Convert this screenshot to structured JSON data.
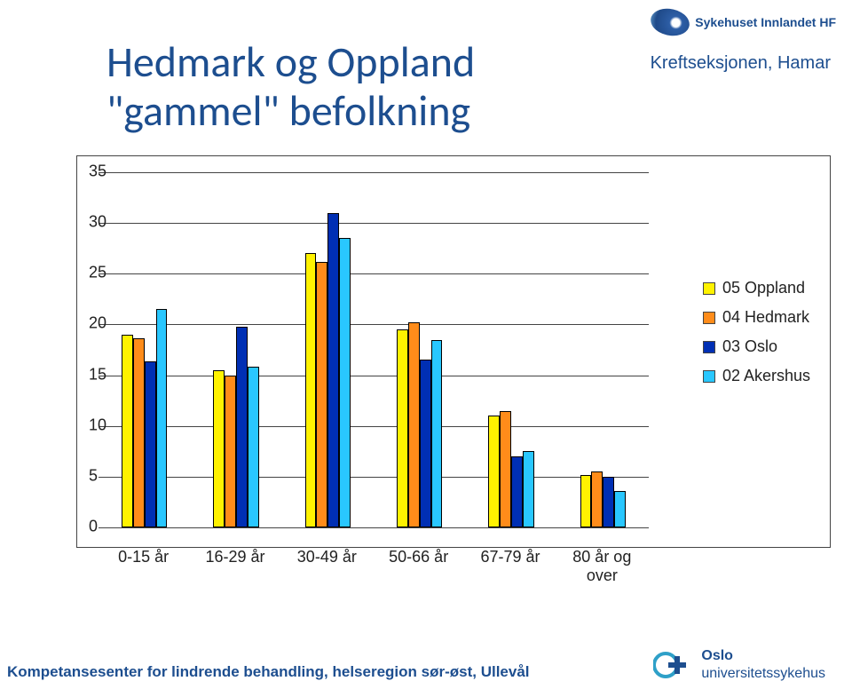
{
  "header": {
    "logo_text": "Sykehuset Innlandet HF",
    "subunit": "Kreftseksjonen, Hamar"
  },
  "title": "Hedmark og Oppland\n\"gammel\" befolkning",
  "chart": {
    "type": "bar",
    "categories": [
      "0-15 år",
      "16-29 år",
      "30-49 år",
      "50-66 år",
      "67-79 år",
      "80 år og over"
    ],
    "series": [
      {
        "name": "05 Oppland",
        "color": "#fff200",
        "values": [
          19.0,
          15.5,
          27.0,
          19.5,
          11.0,
          5.2
        ]
      },
      {
        "name": "04 Hedmark",
        "color": "#ff8c1a",
        "values": [
          18.6,
          15.0,
          26.2,
          20.2,
          11.5,
          5.5
        ]
      },
      {
        "name": "03 Oslo",
        "color": "#002fb4",
        "values": [
          16.4,
          19.8,
          31.0,
          16.5,
          7.0,
          5.0
        ]
      },
      {
        "name": "02 Akershus",
        "color": "#29c7ff",
        "values": [
          21.5,
          15.8,
          28.5,
          18.5,
          7.5,
          3.6
        ]
      }
    ],
    "y": {
      "min": 0,
      "max": 35,
      "step": 5,
      "ticks": [
        0,
        5,
        10,
        15,
        20,
        25,
        30,
        35
      ],
      "gridlines": true
    },
    "style": {
      "plot_background": "#ffffff",
      "border_color": "#444444",
      "grid_color": "#444444",
      "tick_fontsize": 18,
      "label_fontsize": 18,
      "legend_fontsize": 18,
      "bar_border": "#000000",
      "group_gap": 0.5,
      "legend_position": "right"
    }
  },
  "footer": {
    "left": "Kompetansesenter for lindrende behandling, helseregion sør-øst, Ullevål",
    "right_line1": "Oslo",
    "right_line2": "universitetssykehus"
  }
}
